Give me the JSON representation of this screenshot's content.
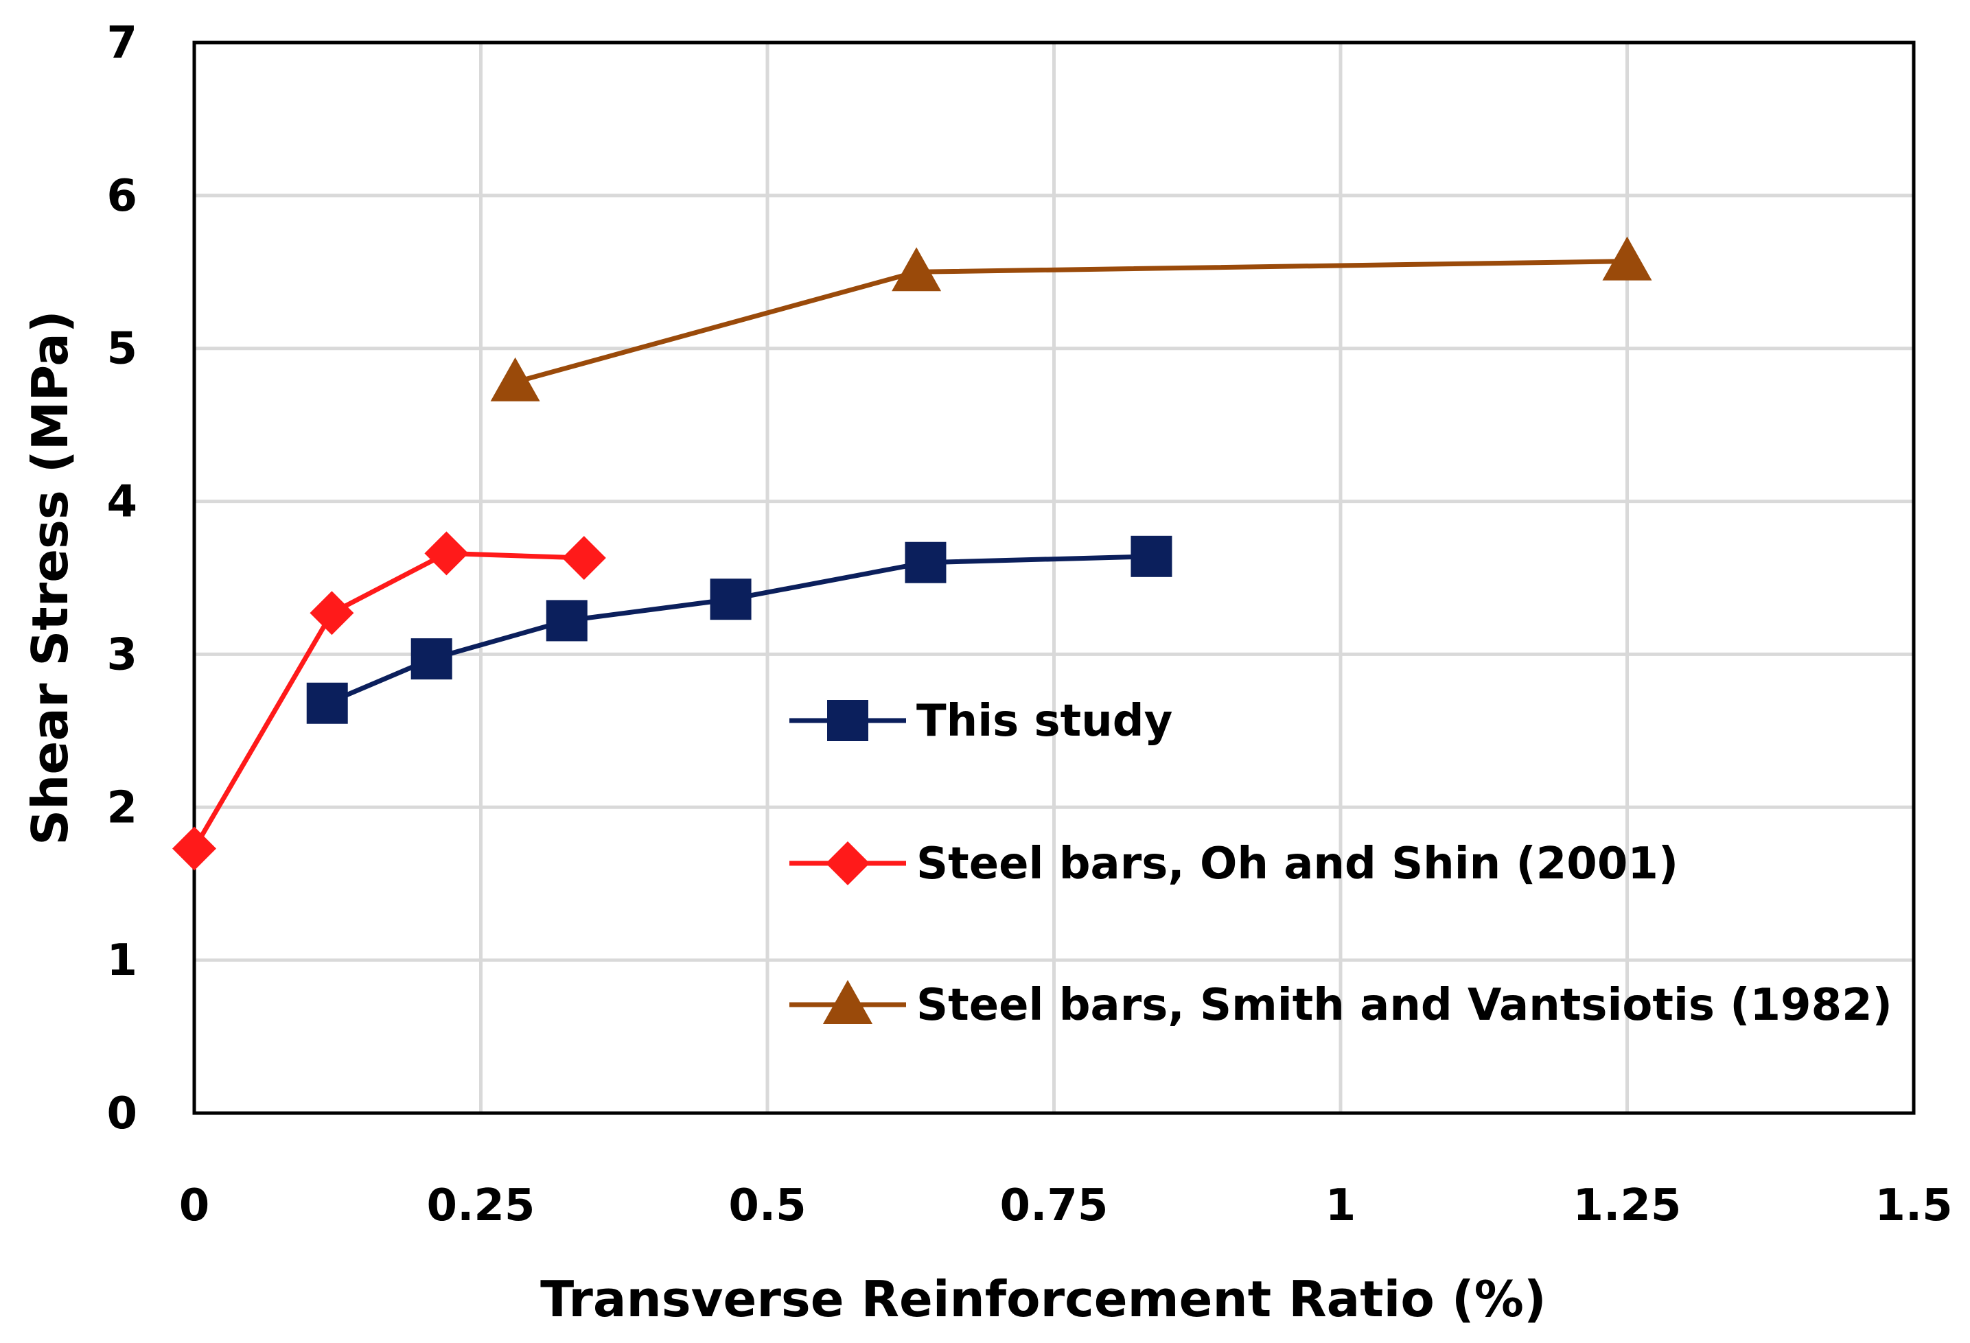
{
  "chart_data": {
    "type": "line",
    "title": "",
    "xlabel": "Transverse Reinforcement Ratio (%)",
    "ylabel": "Shear Stress (MPa)",
    "xlim": [
      0,
      1.5
    ],
    "ylim": [
      0,
      7
    ],
    "grid": true,
    "x_ticks": [
      0,
      0.25,
      0.5,
      0.75,
      1,
      1.25,
      1.5
    ],
    "x_tick_labels": [
      "0",
      "0.25",
      "0.5",
      "0.75",
      "1",
      "1.25",
      "1.5"
    ],
    "y_ticks": [
      0,
      1,
      2,
      3,
      4,
      5,
      6,
      7
    ],
    "y_tick_labels": [
      "0",
      "1",
      "2",
      "3",
      "4",
      "5",
      "6",
      "7"
    ],
    "legend_position": "center-right",
    "series": [
      {
        "name": "This study",
        "color": "#0b1f5c",
        "marker": "square",
        "x": [
          0.116,
          0.207,
          0.325,
          0.468,
          0.638,
          0.835
        ],
        "y": [
          2.68,
          2.97,
          3.22,
          3.36,
          3.6,
          3.64
        ]
      },
      {
        "name": "Steel bars, Oh and Shin (2001)",
        "color": "#ff1a1a",
        "marker": "diamond",
        "x": [
          0.0,
          0.12,
          0.22,
          0.34
        ],
        "y": [
          1.73,
          3.27,
          3.66,
          3.63
        ]
      },
      {
        "name": "Steel bars, Smith and Vantsiotis (1982)",
        "color": "#9a4a0a",
        "marker": "triangle",
        "x": [
          0.28,
          0.63,
          1.25
        ],
        "y": [
          4.78,
          5.5,
          5.57
        ]
      }
    ]
  }
}
